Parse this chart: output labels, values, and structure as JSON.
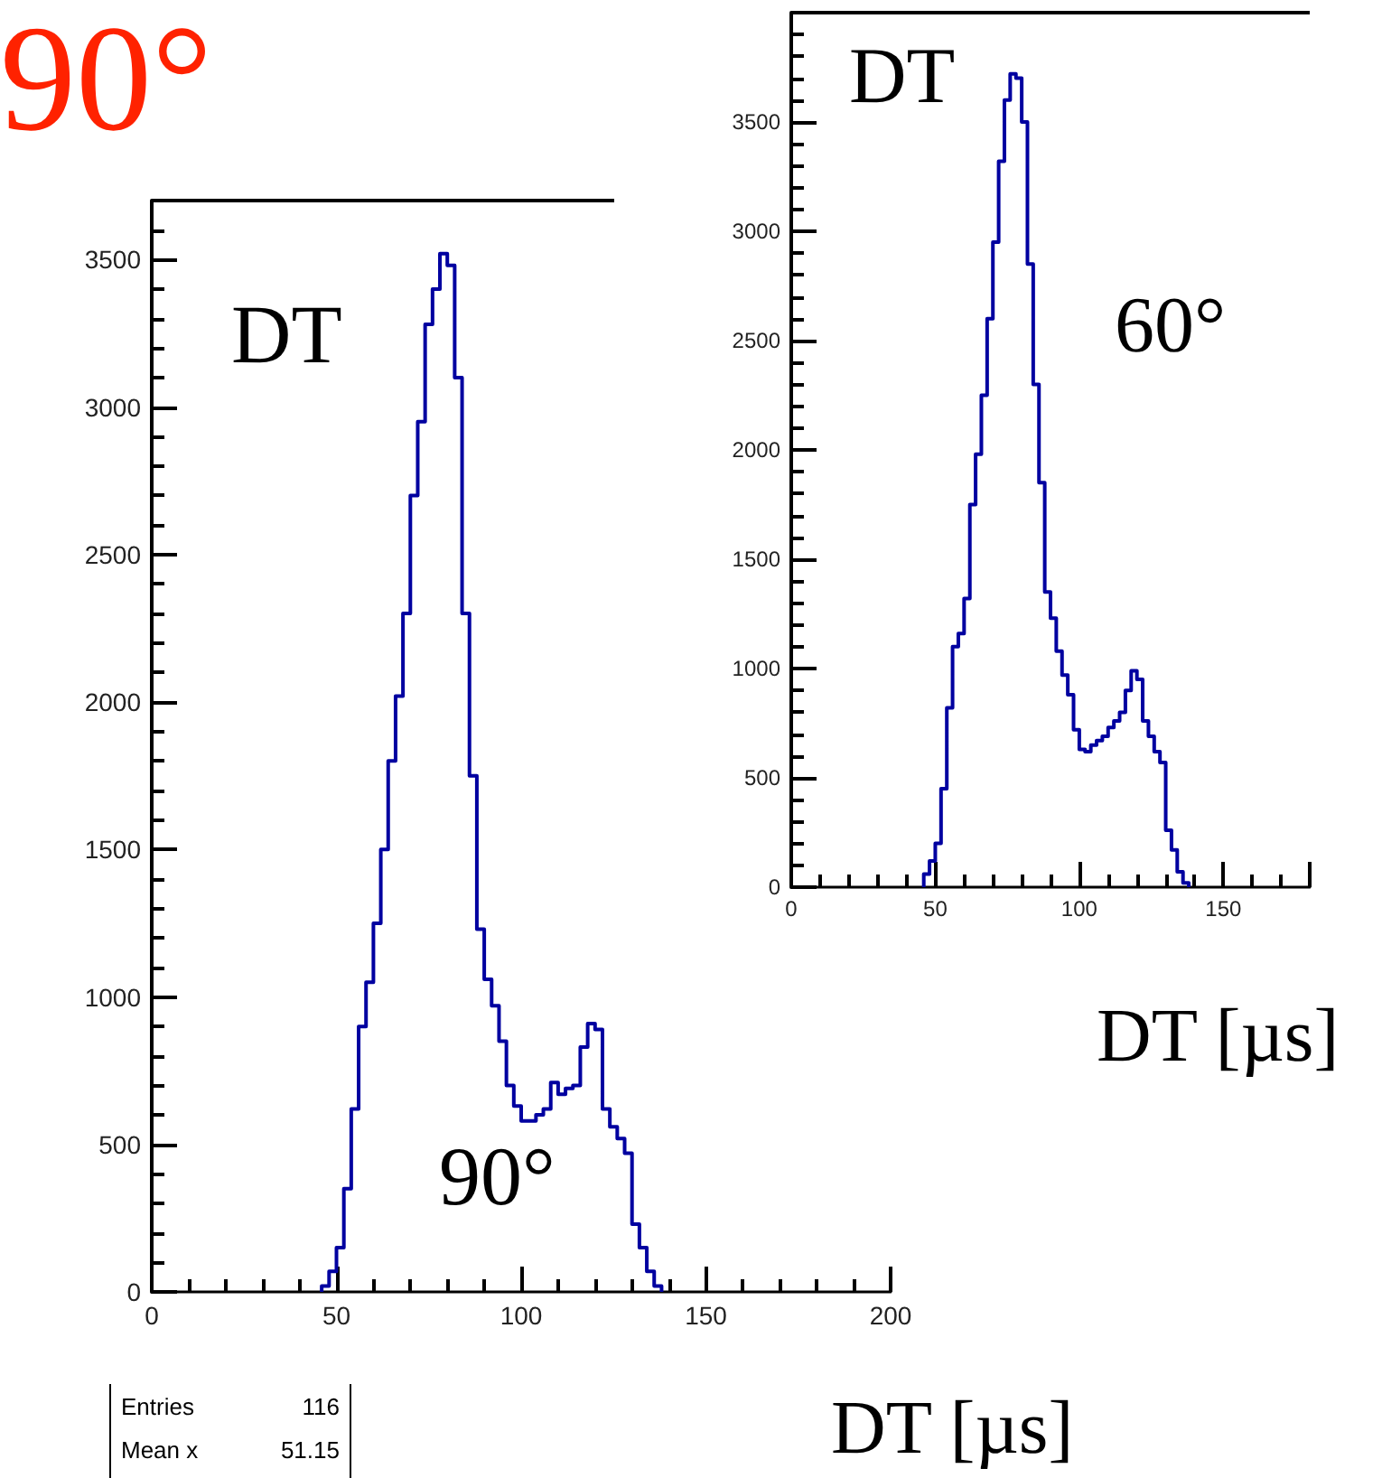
{
  "chart_data": [
    {
      "type": "histogram",
      "title": "90°",
      "xlabel": "DT [µs]",
      "annotations": [
        "DT",
        "90°",
        "Entries",
        "116",
        "Mean x",
        "51.15"
      ],
      "bins": [
        46,
        48,
        50,
        52,
        54,
        56,
        58,
        60,
        62,
        64,
        66,
        68,
        70,
        72,
        74,
        76,
        78,
        80,
        82,
        84,
        86,
        88,
        90,
        92,
        94,
        96,
        98,
        100,
        102,
        104,
        106,
        108,
        110,
        112,
        114,
        116,
        118,
        120,
        122,
        124,
        126,
        128,
        130,
        132,
        134,
        136,
        138
      ],
      "values": [
        20,
        70,
        150,
        350,
        620,
        900,
        1050,
        1250,
        1500,
        1800,
        2020,
        2300,
        2700,
        2950,
        3280,
        3400,
        3520,
        3480,
        3100,
        2300,
        1750,
        1230,
        1060,
        970,
        850,
        700,
        630,
        580,
        580,
        600,
        620,
        710,
        670,
        690,
        700,
        830,
        910,
        890,
        620,
        560,
        520,
        470,
        230,
        150,
        70,
        20
      ],
      "color": "#0000a0",
      "xlim": [
        0,
        200
      ],
      "xticks": [
        0,
        50,
        100,
        150,
        200
      ],
      "ylim": [
        0,
        3700
      ],
      "yticks": [
        0,
        500,
        1000,
        1500,
        2000,
        2500,
        3000,
        3500
      ]
    },
    {
      "type": "histogram",
      "xlabel": "DT [µs]",
      "annotations": [
        "DT",
        "60°"
      ],
      "bins": [
        46,
        48,
        50,
        52,
        54,
        56,
        58,
        60,
        62,
        64,
        66,
        68,
        70,
        72,
        74,
        76,
        78,
        80,
        82,
        84,
        86,
        88,
        90,
        92,
        94,
        96,
        98,
        100,
        102,
        104,
        106,
        108,
        110,
        112,
        114,
        116,
        118,
        120,
        122,
        124,
        126,
        128,
        130,
        132,
        134,
        136,
        138
      ],
      "values": [
        60,
        120,
        200,
        450,
        820,
        1100,
        1160,
        1320,
        1750,
        1980,
        2250,
        2600,
        2950,
        3320,
        3600,
        3720,
        3700,
        3500,
        2850,
        2300,
        1850,
        1350,
        1230,
        1080,
        970,
        880,
        720,
        630,
        620,
        650,
        670,
        690,
        730,
        760,
        800,
        900,
        990,
        950,
        760,
        690,
        620,
        570,
        260,
        170,
        70,
        20
      ],
      "color": "#0000a0",
      "xlim": [
        0,
        180
      ],
      "xticks": [
        0,
        50,
        100,
        150
      ],
      "ylim": [
        0,
        4000
      ],
      "yticks": [
        0,
        500,
        1000,
        1500,
        2000,
        2500,
        3000,
        3500
      ]
    }
  ]
}
